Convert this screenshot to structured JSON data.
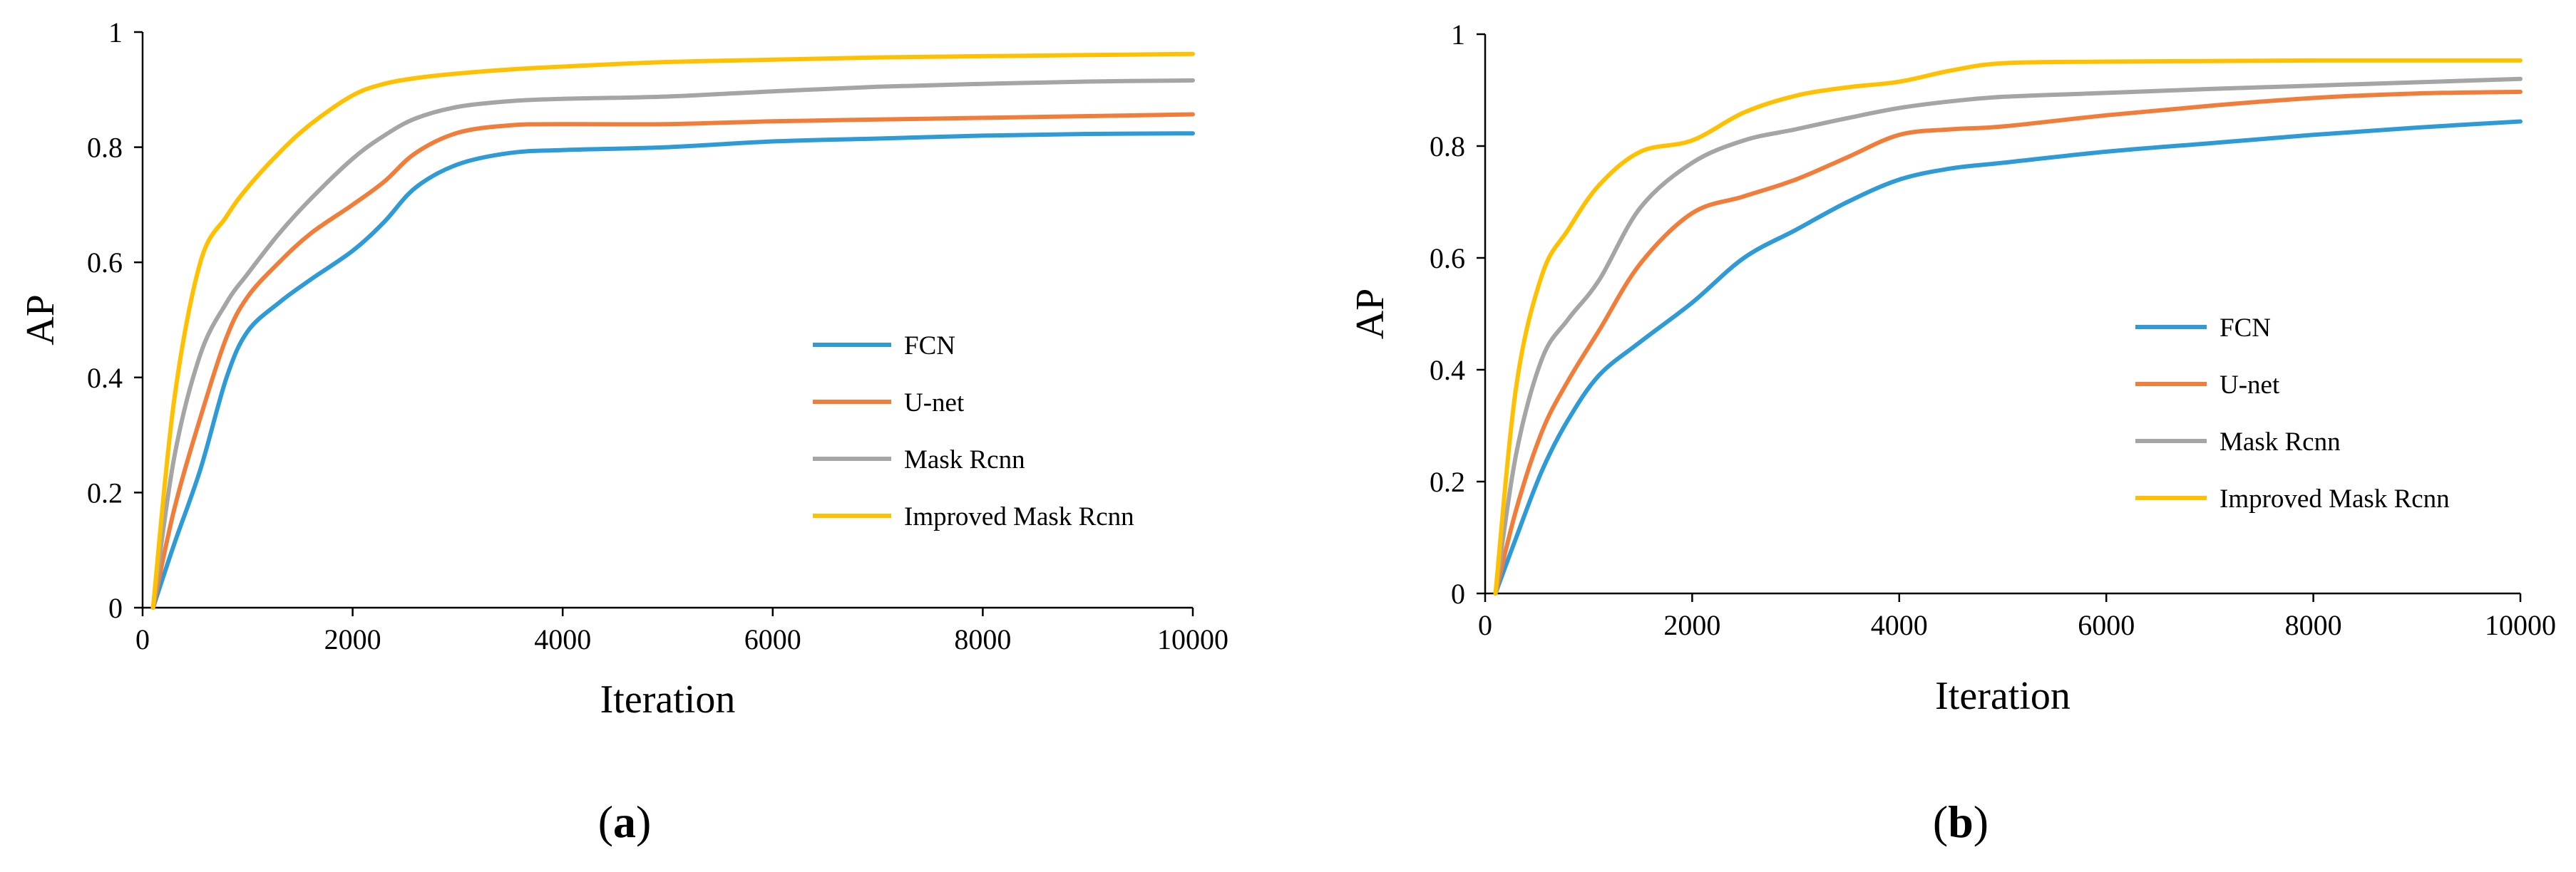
{
  "chart_data": [
    {
      "id": "a",
      "type": "line",
      "caption_letter": "a",
      "title": "",
      "xlabel": "Iteration",
      "ylabel": "AP",
      "xlim": [
        0,
        10000
      ],
      "ylim": [
        0,
        1
      ],
      "xticks": [
        0,
        2000,
        4000,
        6000,
        8000,
        10000
      ],
      "yticks": [
        0,
        0.2,
        0.4,
        0.6,
        0.8,
        1
      ],
      "xtick_labels": [
        "0",
        "2000",
        "4000",
        "6000",
        "8000",
        "10000"
      ],
      "ytick_labels": [
        "0",
        "0.2",
        "0.4",
        "0.6",
        "0.8",
        "1"
      ],
      "grid": false,
      "legend_position": "right-center",
      "series": [
        {
          "name": "FCN",
          "color": "#2E9BD6",
          "x": [
            100,
            300,
            550,
            800,
            1000,
            1300,
            1600,
            2000,
            2300,
            2600,
            3000,
            3500,
            4000,
            5000,
            6000,
            7000,
            8000,
            9000,
            10000
          ],
          "y": [
            0,
            0.11,
            0.24,
            0.4,
            0.48,
            0.53,
            0.57,
            0.62,
            0.67,
            0.73,
            0.77,
            0.79,
            0.795,
            0.8,
            0.81,
            0.815,
            0.82,
            0.823,
            0.824
          ]
        },
        {
          "name": "U-net",
          "color": "#F07E3A",
          "x": [
            100,
            300,
            550,
            800,
            1000,
            1300,
            1600,
            2000,
            2300,
            2600,
            3000,
            3500,
            4000,
            5000,
            6000,
            7000,
            8000,
            9000,
            10000
          ],
          "y": [
            0,
            0.17,
            0.33,
            0.47,
            0.54,
            0.6,
            0.65,
            0.7,
            0.74,
            0.79,
            0.825,
            0.838,
            0.84,
            0.84,
            0.845,
            0.848,
            0.851,
            0.854,
            0.857
          ]
        },
        {
          "name": "Mask Rcnn",
          "color": "#A5A5A5",
          "x": [
            100,
            300,
            550,
            800,
            1000,
            1300,
            1600,
            2000,
            2300,
            2600,
            3000,
            3500,
            4000,
            5000,
            6000,
            7000,
            8000,
            9000,
            10000
          ],
          "y": [
            0,
            0.26,
            0.44,
            0.53,
            0.58,
            0.65,
            0.71,
            0.78,
            0.82,
            0.85,
            0.87,
            0.88,
            0.884,
            0.888,
            0.897,
            0.905,
            0.91,
            0.914,
            0.916
          ]
        },
        {
          "name": "Improved Mask Rcnn",
          "color": "#FFC000",
          "x": [
            100,
            300,
            550,
            800,
            1000,
            1300,
            1600,
            2000,
            2300,
            2600,
            3000,
            3500,
            4000,
            5000,
            6000,
            7000,
            8000,
            9000,
            10000
          ],
          "y": [
            0,
            0.36,
            0.6,
            0.68,
            0.73,
            0.79,
            0.84,
            0.89,
            0.91,
            0.92,
            0.928,
            0.935,
            0.94,
            0.948,
            0.952,
            0.956,
            0.958,
            0.96,
            0.962
          ]
        }
      ]
    },
    {
      "id": "b",
      "type": "line",
      "caption_letter": "b",
      "title": "",
      "xlabel": "Iteration",
      "ylabel": "AP",
      "xlim": [
        0,
        10000
      ],
      "ylim": [
        0,
        1
      ],
      "xticks": [
        0,
        2000,
        4000,
        6000,
        8000,
        10000
      ],
      "yticks": [
        0,
        0.2,
        0.4,
        0.6,
        0.8,
        1
      ],
      "xtick_labels": [
        "0",
        "2000",
        "4000",
        "6000",
        "8000",
        "10000"
      ],
      "ytick_labels": [
        "0",
        "0.2",
        "0.4",
        "0.6",
        "0.8",
        "1"
      ],
      "grid": false,
      "legend_position": "right-center",
      "series": [
        {
          "name": "FCN",
          "color": "#2E9BD6",
          "x": [
            100,
            300,
            550,
            800,
            1100,
            1500,
            2000,
            2500,
            3000,
            3500,
            4000,
            4500,
            5000,
            6000,
            7000,
            8000,
            9000,
            10000
          ],
          "y": [
            0,
            0.1,
            0.22,
            0.31,
            0.39,
            0.45,
            0.52,
            0.6,
            0.65,
            0.7,
            0.74,
            0.76,
            0.77,
            0.79,
            0.805,
            0.82,
            0.833,
            0.844
          ]
        },
        {
          "name": "U-net",
          "color": "#F07E3A",
          "x": [
            100,
            300,
            550,
            800,
            1100,
            1500,
            2000,
            2500,
            3000,
            3500,
            4000,
            4500,
            5000,
            6000,
            7000,
            8000,
            9000,
            10000
          ],
          "y": [
            0,
            0.15,
            0.29,
            0.38,
            0.47,
            0.59,
            0.68,
            0.71,
            0.74,
            0.78,
            0.82,
            0.83,
            0.835,
            0.855,
            0.872,
            0.886,
            0.894,
            0.897
          ]
        },
        {
          "name": "Mask Rcnn",
          "color": "#A5A5A5",
          "x": [
            100,
            300,
            550,
            800,
            1100,
            1500,
            2000,
            2500,
            3000,
            3500,
            4000,
            4500,
            5000,
            6000,
            7000,
            8000,
            9000,
            10000
          ],
          "y": [
            0,
            0.25,
            0.42,
            0.49,
            0.56,
            0.69,
            0.77,
            0.81,
            0.83,
            0.85,
            0.868,
            0.88,
            0.888,
            0.895,
            0.902,
            0.908,
            0.914,
            0.92
          ]
        },
        {
          "name": "Improved Mask Rcnn",
          "color": "#FFC000",
          "x": [
            100,
            300,
            550,
            800,
            1100,
            1500,
            2000,
            2500,
            3000,
            3500,
            4000,
            4500,
            5000,
            6000,
            7000,
            8000,
            9000,
            10000
          ],
          "y": [
            0,
            0.37,
            0.57,
            0.65,
            0.73,
            0.79,
            0.81,
            0.86,
            0.89,
            0.905,
            0.915,
            0.935,
            0.948,
            0.951,
            0.952,
            0.953,
            0.953,
            0.953
          ]
        }
      ]
    }
  ]
}
